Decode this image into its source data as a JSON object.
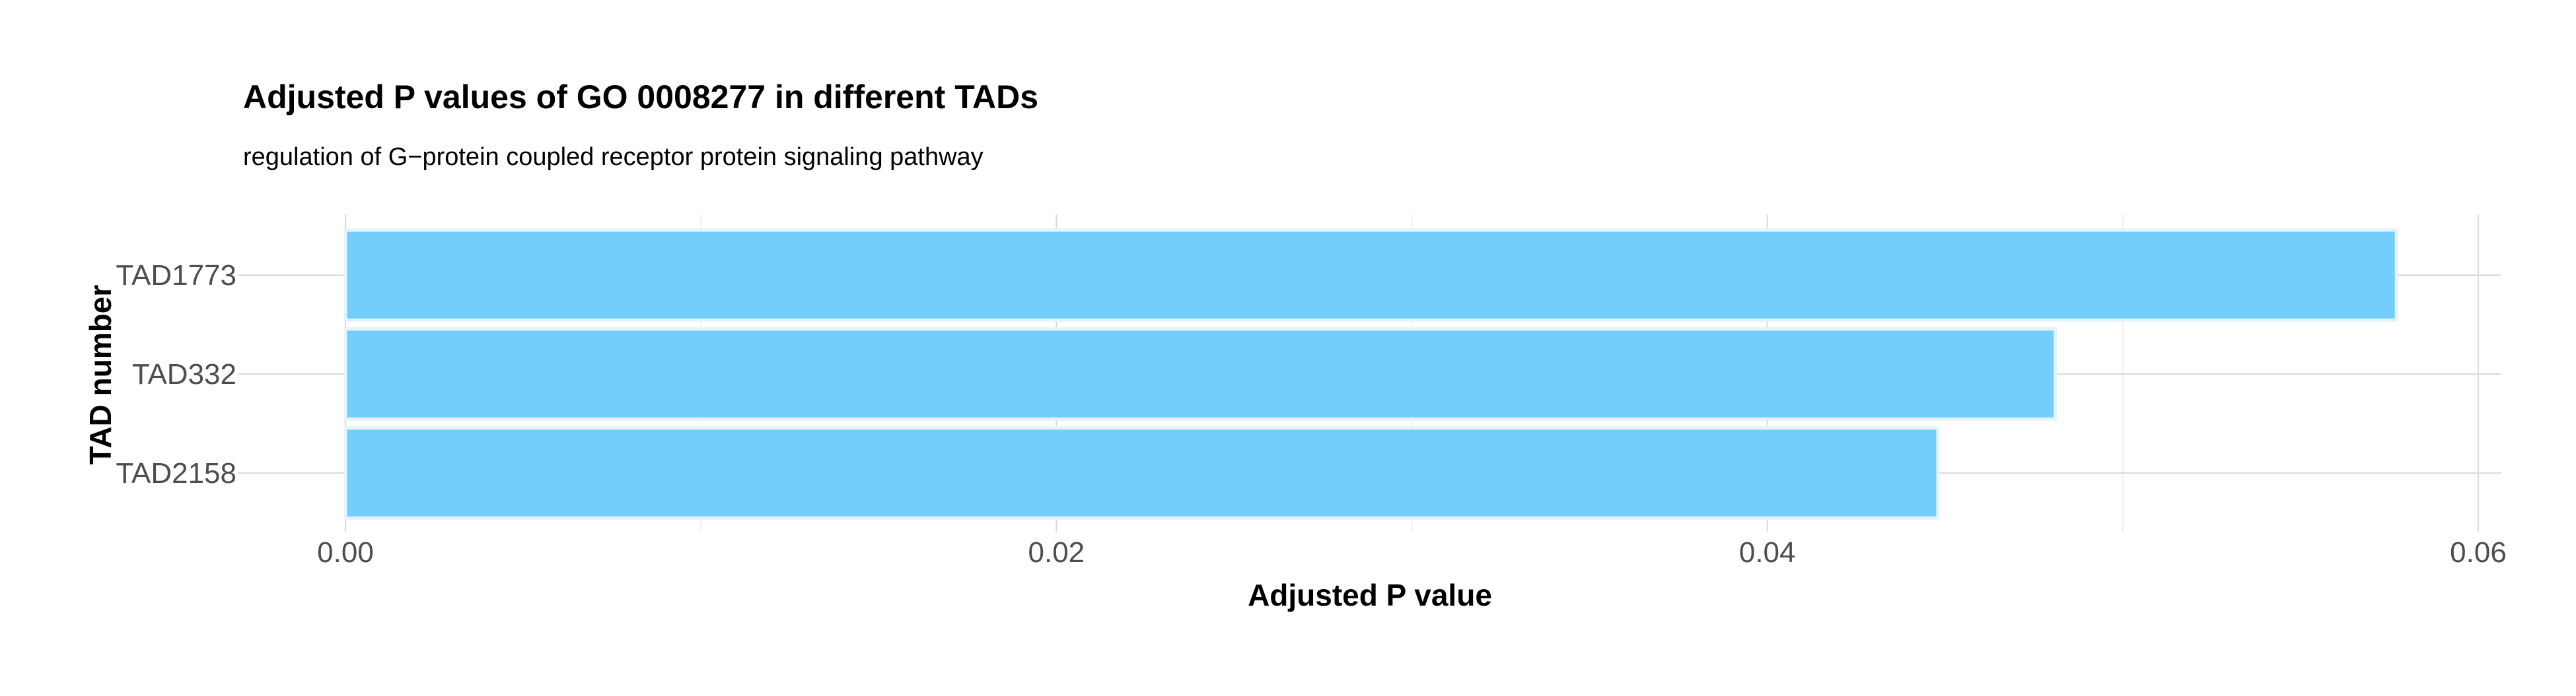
{
  "chart_data": {
    "type": "bar",
    "orientation": "horizontal",
    "title": "Adjusted P values of GO 0008277 in different TADs",
    "subtitle": "regulation of G−protein coupled receptor protein signaling pathway",
    "xlabel": "Adjusted P value",
    "ylabel": "TAD number",
    "categories": [
      "TAD1773",
      "TAD332",
      "TAD2158"
    ],
    "values": [
      0.0577,
      0.0481,
      0.0448
    ],
    "xlim": [
      0,
      0.06
    ],
    "x_ticks": [
      0,
      0.02,
      0.04,
      0.06
    ],
    "x_tick_labels": [
      "0.00",
      "0.02",
      "0.04",
      "0.06"
    ],
    "grid": true,
    "legend": "none",
    "colors": {
      "bar_fill": "#73CEFB",
      "bar_outline": "#E4F3FC"
    }
  }
}
